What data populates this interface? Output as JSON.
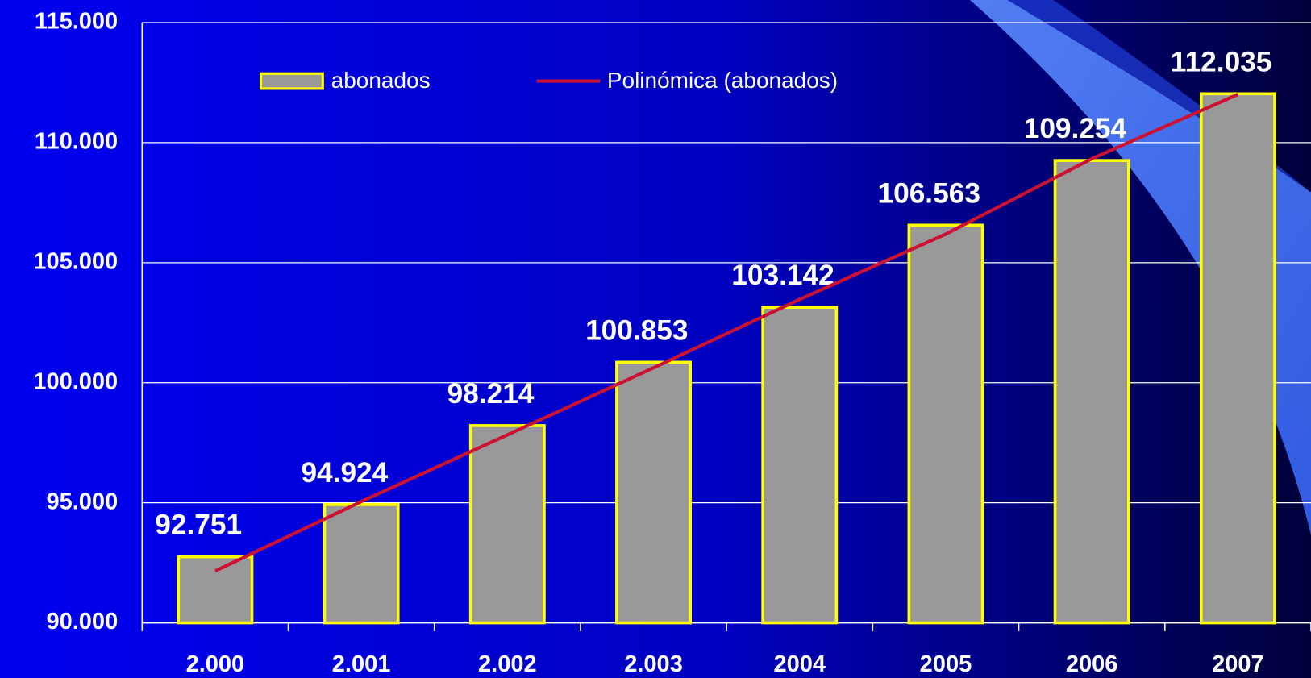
{
  "chart_data": {
    "type": "bar",
    "categories": [
      "2.000",
      "2.001",
      "2.002",
      "2.003",
      "2004",
      "2005",
      "2006",
      "2007"
    ],
    "series": [
      {
        "name": "abonados",
        "color": "#999999",
        "values": [
          92751,
          94924,
          98214,
          100853,
          103142,
          106563,
          109254,
          112035
        ],
        "value_labels": [
          "92.751",
          "94.924",
          "98.214",
          "100.853",
          "103.142",
          "106.563",
          "109.254",
          "112.035"
        ]
      },
      {
        "name": "Polinómica (abonados)",
        "type": "line",
        "color": "#cc1133",
        "values": [
          92160,
          95050,
          97830,
          100620,
          103470,
          106190,
          109330,
          112010
        ]
      }
    ],
    "ylim": [
      90000,
      115000
    ],
    "yticks": [
      {
        "value": 90000,
        "label": "90.000"
      },
      {
        "value": 95000,
        "label": "95.000"
      },
      {
        "value": 100000,
        "label": "100.000"
      },
      {
        "value": 105000,
        "label": "105.000"
      },
      {
        "value": 110000,
        "label": "110.000"
      },
      {
        "value": 115000,
        "label": "115.000"
      }
    ],
    "grid": true,
    "legend": "top"
  }
}
